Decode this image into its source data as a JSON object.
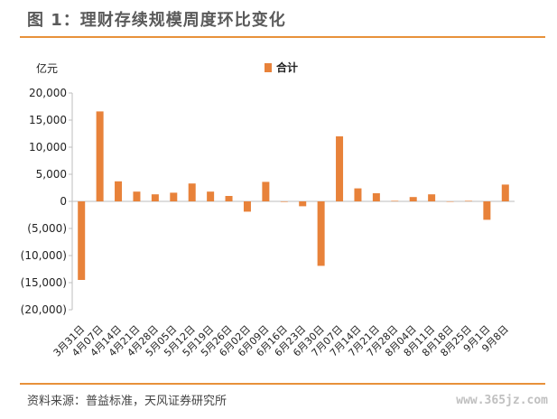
{
  "figure_title": "图 1：理财存续规模周度环比变化",
  "source_note": "资料来源：普益标准，天风证券研究所",
  "watermark": "www.365jz.com",
  "colors": {
    "bar": "#e8823a",
    "accent_rule": "#e8913a",
    "axis": "#bdbdbd"
  },
  "chart_data": {
    "type": "bar",
    "unit_label": "亿元",
    "legend": {
      "label": "合计",
      "position": "top-center"
    },
    "ylim": [
      -20000,
      20000
    ],
    "y_ticks": [
      20000,
      15000,
      10000,
      5000,
      0,
      -5000,
      -10000,
      -15000,
      -20000
    ],
    "y_tick_labels": [
      "20,000",
      "15,000",
      "10,000",
      "5,000",
      "0",
      "(5,000)",
      "(10,000)",
      "(15,000)",
      "(20,000)"
    ],
    "grid": false,
    "categories": [
      "3月31日",
      "4月07日",
      "4月14日",
      "4月21日",
      "4月28日",
      "5月05日",
      "5月12日",
      "5月19日",
      "5月26日",
      "6月02日",
      "6月09日",
      "6月16日",
      "6月23日",
      "6月30日",
      "7月07日",
      "7月14日",
      "7月21日",
      "7月28日",
      "8月04日",
      "8月11日",
      "8月18日",
      "8月25日",
      "9月1日",
      "9月8日"
    ],
    "series": [
      {
        "name": "合计",
        "values": [
          -14500,
          16600,
          3700,
          1800,
          1300,
          1600,
          3300,
          1800,
          1000,
          -1900,
          3600,
          -100,
          -900,
          -11900,
          12000,
          2400,
          1500,
          100,
          800,
          1300,
          0,
          100,
          -3400,
          3100
        ]
      }
    ]
  }
}
